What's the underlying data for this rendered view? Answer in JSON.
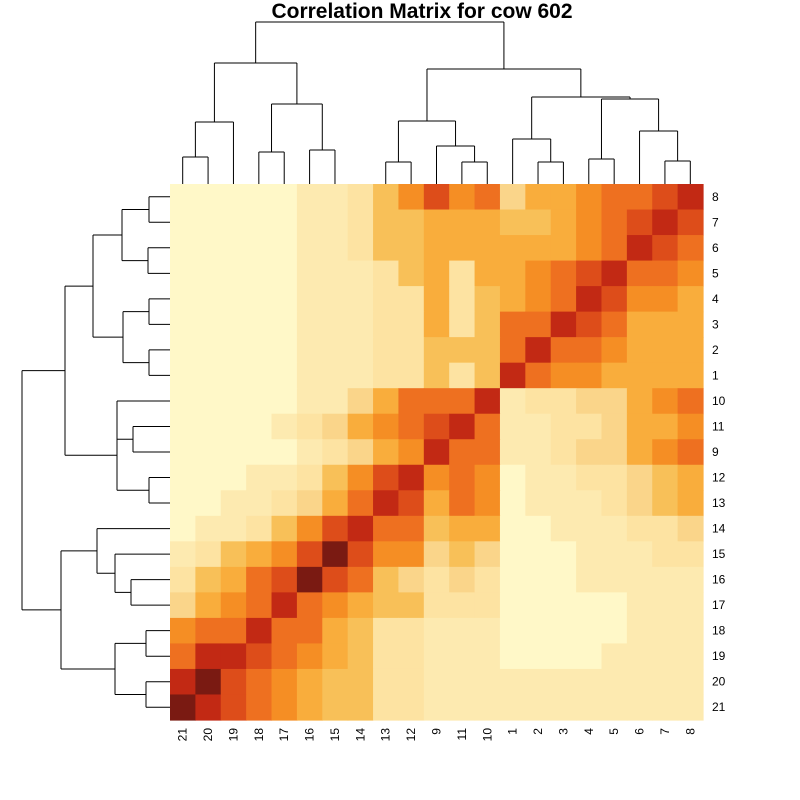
{
  "chart_data": {
    "type": "heatmap",
    "title": "Correlation Matrix for cow 602",
    "xlabel": "",
    "ylabel": "",
    "x_order": [
      "21",
      "20",
      "19",
      "18",
      "17",
      "16",
      "15",
      "14",
      "13",
      "12",
      "9",
      "11",
      "10",
      "1",
      "2",
      "3",
      "4",
      "5",
      "6",
      "7",
      "8"
    ],
    "y_order": [
      "8",
      "7",
      "6",
      "5",
      "4",
      "3",
      "2",
      "1",
      "10",
      "11",
      "9",
      "12",
      "13",
      "14",
      "15",
      "16",
      "17",
      "18",
      "19",
      "20",
      "21"
    ],
    "levels": [
      [
        0,
        0,
        0,
        0,
        0,
        1,
        1,
        2,
        4,
        6,
        8,
        6,
        7,
        3,
        5,
        5,
        6,
        7,
        7,
        8,
        9
      ],
      [
        0,
        0,
        0,
        0,
        0,
        1,
        1,
        2,
        4,
        4,
        5,
        5,
        5,
        4,
        4,
        5,
        6,
        7,
        8,
        9,
        8
      ],
      [
        0,
        0,
        0,
        0,
        0,
        1,
        1,
        2,
        4,
        4,
        5,
        5,
        5,
        5,
        5,
        5,
        6,
        7,
        9,
        8,
        7
      ],
      [
        0,
        0,
        0,
        0,
        0,
        1,
        1,
        1,
        2,
        4,
        5,
        2,
        5,
        5,
        6,
        7,
        8,
        9,
        7,
        7,
        6
      ],
      [
        0,
        0,
        0,
        0,
        0,
        1,
        1,
        1,
        2,
        2,
        5,
        2,
        4,
        5,
        6,
        7,
        9,
        8,
        6,
        6,
        5
      ],
      [
        0,
        0,
        0,
        0,
        0,
        1,
        1,
        1,
        2,
        2,
        5,
        2,
        4,
        7,
        7,
        9,
        8,
        7,
        5,
        5,
        5
      ],
      [
        0,
        0,
        0,
        0,
        0,
        1,
        1,
        1,
        2,
        2,
        4,
        4,
        4,
        7,
        9,
        7,
        7,
        6,
        5,
        5,
        5
      ],
      [
        0,
        0,
        0,
        0,
        0,
        1,
        1,
        1,
        2,
        2,
        4,
        2,
        4,
        9,
        7,
        6,
        6,
        5,
        5,
        5,
        5
      ],
      [
        0,
        0,
        0,
        0,
        0,
        1,
        1,
        3,
        5,
        7,
        7,
        7,
        9,
        1,
        2,
        2,
        3,
        3,
        5,
        6,
        7
      ],
      [
        0,
        0,
        0,
        0,
        1,
        2,
        3,
        5,
        6,
        7,
        8,
        9,
        7,
        1,
        1,
        2,
        2,
        3,
        5,
        5,
        6
      ],
      [
        0,
        0,
        0,
        0,
        0,
        1,
        2,
        3,
        5,
        6,
        9,
        7,
        7,
        1,
        1,
        2,
        3,
        3,
        5,
        6,
        7
      ],
      [
        0,
        0,
        0,
        1,
        1,
        2,
        4,
        6,
        8,
        9,
        6,
        7,
        6,
        0,
        1,
        1,
        2,
        2,
        3,
        4,
        5
      ],
      [
        0,
        0,
        1,
        1,
        2,
        3,
        5,
        7,
        9,
        8,
        5,
        7,
        6,
        0,
        1,
        1,
        1,
        2,
        3,
        4,
        5
      ],
      [
        0,
        1,
        1,
        2,
        4,
        6,
        8,
        9,
        7,
        7,
        4,
        5,
        5,
        0,
        0,
        1,
        1,
        1,
        2,
        2,
        3
      ],
      [
        1,
        2,
        4,
        5,
        6,
        8,
        10,
        8,
        6,
        6,
        3,
        4,
        3,
        0,
        0,
        0,
        1,
        1,
        1,
        2,
        2
      ],
      [
        2,
        4,
        5,
        7,
        8,
        10,
        8,
        7,
        4,
        3,
        2,
        3,
        2,
        0,
        0,
        0,
        1,
        1,
        1,
        1,
        1
      ],
      [
        3,
        5,
        6,
        7,
        9,
        7,
        6,
        5,
        4,
        4,
        2,
        2,
        2,
        0,
        0,
        0,
        0,
        0,
        1,
        1,
        1
      ],
      [
        6,
        7,
        7,
        9,
        7,
        7,
        5,
        4,
        2,
        2,
        1,
        1,
        1,
        0,
        0,
        0,
        0,
        0,
        1,
        1,
        1
      ],
      [
        7,
        9,
        9,
        8,
        7,
        6,
        5,
        4,
        2,
        2,
        1,
        1,
        1,
        0,
        0,
        0,
        0,
        1,
        1,
        1,
        1
      ],
      [
        9,
        10,
        8,
        7,
        6,
        5,
        4,
        4,
        2,
        2,
        1,
        1,
        1,
        1,
        1,
        1,
        1,
        1,
        1,
        1,
        1
      ],
      [
        10,
        9,
        8,
        7,
        6,
        5,
        4,
        4,
        2,
        2,
        1,
        1,
        1,
        1,
        1,
        1,
        1,
        1,
        1,
        1,
        1
      ]
    ],
    "color_scale": [
      "#fff8c8",
      "#fdeab0",
      "#fde3a2",
      "#fad58a",
      "#f8c058",
      "#f9ad3c",
      "#f58e24",
      "#ee7020",
      "#dd4d1a",
      "#c22914",
      "#7a1a12"
    ],
    "column_dendrogram_order": "((21,20),19),((18,17),(16,15)),((13,12),(9,(11,10))),((1,(2,3)),((4,5),(6,(7,8))))",
    "row_dendrogram_order": "((((8,7),(6,5)),((4,3),(2,1))),((10,(11,9)),(12,13))),((14,(15,(16,17))),((18,19),(20,21)))"
  }
}
